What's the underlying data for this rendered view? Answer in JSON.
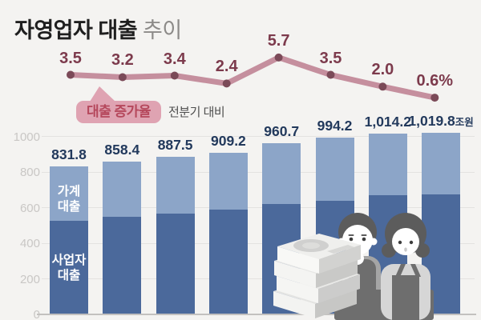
{
  "title": {
    "main": "자영업자 대출",
    "sub": "추이"
  },
  "callout": {
    "label": "대출 증가율",
    "note": "전분기 대비"
  },
  "colors": {
    "background": "#f4f3f1",
    "line": "#c58f9e",
    "point": "#7b4a58",
    "line_label": "#7c3a4c",
    "bubble_fill": "#dfa3b2",
    "bubble_text": "#b5485c",
    "bar_business": "#4b699b",
    "bar_household": "#8ca5c8",
    "bar_value_label": "#22395c",
    "axis_label": "#c9c7c5",
    "gridline": "#e4e2e0"
  },
  "chart_data": [
    {
      "type": "line",
      "name": "loan-growth-rate-qoq",
      "title": "대출 증가율",
      "subtitle": "전분기 대비",
      "unit": "%",
      "values": [
        3.5,
        3.2,
        3.4,
        2.4,
        5.7,
        3.5,
        2.0,
        0.6
      ],
      "point_labels": [
        "3.5",
        "3.2",
        "3.4",
        "2.4",
        "5.7",
        "3.5",
        "2.0",
        "0.6%"
      ],
      "legend_position": "callout-bubble-below-line",
      "grid": false
    },
    {
      "type": "bar",
      "stacked": true,
      "name": "self-employed-loan-balance",
      "title": "자영업자 대출 추이",
      "unit": "조원",
      "totals": [
        831.8,
        858.4,
        887.5,
        909.2,
        960.7,
        994.2,
        1014.2,
        1019.8
      ],
      "total_labels": [
        "831.8",
        "858.4",
        "887.5",
        "909.2",
        "960.7",
        "994.2",
        "1,014.2",
        "1,019.8"
      ],
      "last_label_suffix": "조원",
      "series": [
        {
          "name": "사업자 대출",
          "label_lines": "사업자\n대출",
          "color": "#4b699b",
          "values": [
            525,
            549,
            567,
            589,
            621,
            639,
            670,
            675
          ],
          "estimated_from_pixels": true
        },
        {
          "name": "가계 대출",
          "label_lines": "가계\n대출",
          "color": "#8ca5c8",
          "values": [
            306.8,
            309.4,
            320.5,
            320.2,
            339.7,
            355.2,
            344.2,
            344.8
          ],
          "estimated_from_pixels": true
        }
      ],
      "y_ticks": [
        1000,
        800,
        600,
        400,
        200,
        0
      ],
      "ylim": [
        0,
        1070
      ],
      "grid": true
    }
  ],
  "illustration": {
    "icons": [
      "money-stack-icon",
      "shop-owner-man-icon",
      "shop-owner-woman-icon"
    ]
  }
}
